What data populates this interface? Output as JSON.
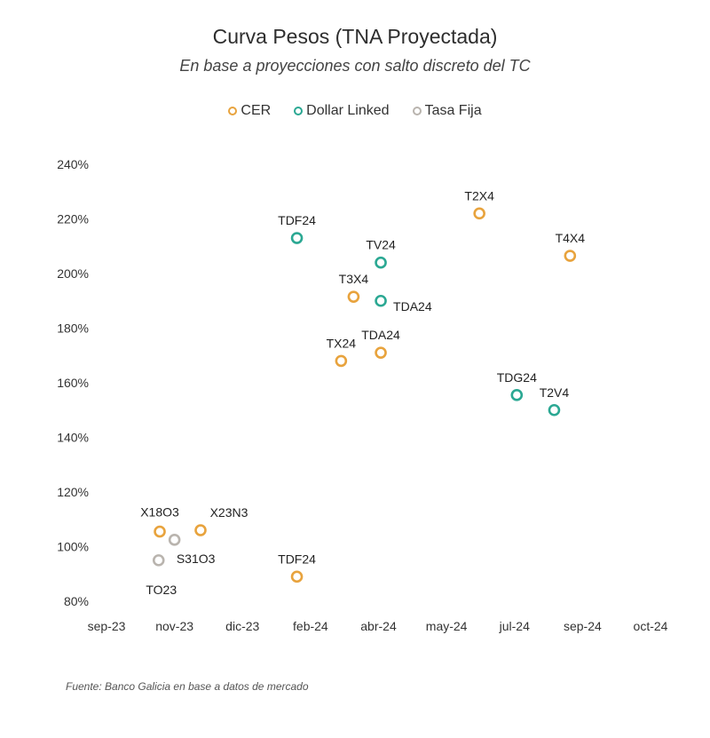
{
  "chart_data": {
    "type": "scatter",
    "title": "Curva Pesos (TNA Proyectada)",
    "subtitle": "En base a proyecciones con salto discreto del TC",
    "xlabel": "",
    "ylabel": "",
    "x_ticks": [
      "sep-23",
      "nov-23",
      "dic-23",
      "feb-24",
      "abr-24",
      "may-24",
      "jul-24",
      "sep-24",
      "oct-24"
    ],
    "x_tick_dates": [
      "2023-09-01",
      "2023-10-31",
      "2023-12-30",
      "2024-02-28",
      "2024-04-28",
      "2024-06-27",
      "2024-08-26",
      "2024-10-25",
      "2024-12-24"
    ],
    "xlim": [
      "2023-09-01",
      "2024-12-24"
    ],
    "ylim": [
      80,
      240
    ],
    "y_ticks": [
      80,
      100,
      120,
      140,
      160,
      180,
      200,
      220,
      240
    ],
    "y_unit": "%",
    "grid": false,
    "legend_position": "top-center",
    "series": [
      {
        "name": "CER",
        "color": "#E8A33D",
        "points": [
          {
            "label": "X18O3",
            "x": "2023-10-18",
            "y": 105.5
          },
          {
            "label": "X23N3",
            "x": "2023-11-23",
            "y": 106
          },
          {
            "label": "TDF24",
            "x": "2024-02-16",
            "y": 89
          },
          {
            "label": "TX24",
            "x": "2024-03-26",
            "y": 168
          },
          {
            "label": "T3X4",
            "x": "2024-04-06",
            "y": 191.5
          },
          {
            "label": "TDA24",
            "x": "2024-04-30",
            "y": 171
          },
          {
            "label": "T2X4",
            "x": "2024-07-26",
            "y": 222
          },
          {
            "label": "T4X4",
            "x": "2024-10-14",
            "y": 206.5
          }
        ]
      },
      {
        "name": "Dollar Linked",
        "color": "#2BA893",
        "points": [
          {
            "label": "TDF24",
            "x": "2024-02-16",
            "y": 213
          },
          {
            "label": "TV24",
            "x": "2024-04-30",
            "y": 204
          },
          {
            "label": "TDA24",
            "x": "2024-04-30",
            "y": 190
          },
          {
            "label": "TDG24",
            "x": "2024-08-28",
            "y": 155.5
          },
          {
            "label": "T2V4",
            "x": "2024-09-30",
            "y": 150
          }
        ]
      },
      {
        "name": "Tasa Fija",
        "color": "#B9B4AE",
        "points": [
          {
            "label": "S31O3",
            "x": "2023-10-31",
            "y": 102.5
          },
          {
            "label": "TO23",
            "x": "2023-10-17",
            "y": 95
          }
        ]
      }
    ]
  },
  "source": "Fuente: Banco Galicia en base a datos de mercado"
}
